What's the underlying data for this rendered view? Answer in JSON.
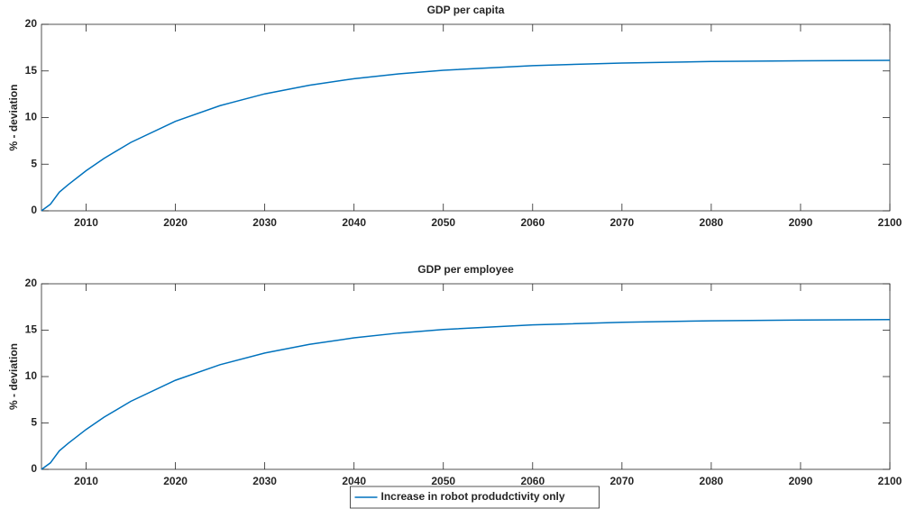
{
  "chart_data": [
    {
      "type": "line",
      "title": "GDP per capita",
      "y_label": "% - deviation",
      "x": [
        2005,
        2006,
        2007,
        2008,
        2010,
        2012,
        2015,
        2020,
        2025,
        2030,
        2035,
        2040,
        2045,
        2050,
        2060,
        2070,
        2080,
        2090,
        2100
      ],
      "series": [
        {
          "color": "#0072bd",
          "values": [
            0,
            0.7,
            2,
            2.81,
            4.3,
            5.62,
            7.33,
            9.6,
            11.28,
            12.54,
            13.47,
            14.17,
            14.69,
            15.07,
            15.57,
            15.85,
            16.01,
            16.09,
            16.14
          ]
        }
      ],
      "xlim": [
        2005,
        2100
      ],
      "xticks": [
        2010,
        2020,
        2030,
        2040,
        2050,
        2060,
        2070,
        2080,
        2090,
        2100
      ],
      "ylim": [
        0,
        20
      ],
      "yticks": [
        0,
        5,
        10,
        15,
        20
      ]
    },
    {
      "type": "line",
      "title": "GDP per employee",
      "y_label": "% - deviation",
      "x": [
        2005,
        2006,
        2007,
        2008,
        2010,
        2012,
        2015,
        2020,
        2025,
        2030,
        2035,
        2040,
        2045,
        2050,
        2060,
        2070,
        2080,
        2090,
        2100
      ],
      "series": [
        {
          "name": "Increase in robot produdctivity only",
          "color": "#0072bd",
          "values": [
            0,
            0.7,
            2,
            2.81,
            4.3,
            5.62,
            7.33,
            9.6,
            11.28,
            12.54,
            13.47,
            14.17,
            14.69,
            15.07,
            15.57,
            15.85,
            16.01,
            16.09,
            16.14
          ]
        }
      ],
      "xlim": [
        2005,
        2100
      ],
      "xticks": [
        2010,
        2020,
        2030,
        2040,
        2050,
        2060,
        2070,
        2080,
        2090,
        2100
      ],
      "ylim": [
        0,
        20
      ],
      "yticks": [
        0,
        5,
        10,
        15,
        20
      ],
      "legend": "bottom"
    }
  ]
}
